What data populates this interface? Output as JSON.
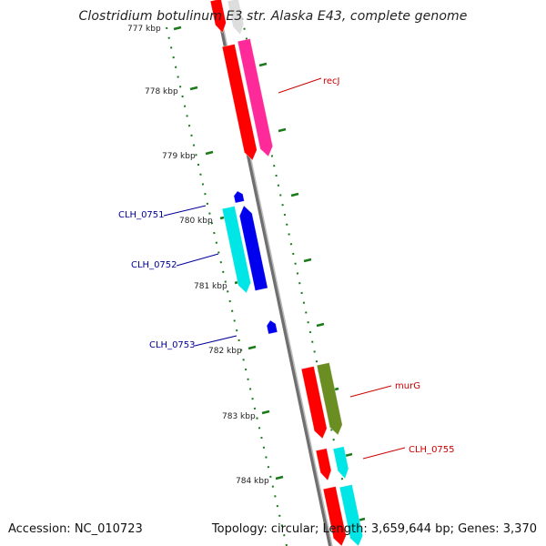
{
  "title": "Clostridium botulinum E3 str. Alaska E43, complete genome",
  "footer": {
    "accession": "Accession: NC_010723",
    "summary": "Topology: circular; Length: 3,659,644 bp; Genes: 3,370"
  },
  "scale_labels": [
    "777 kbp",
    "778 kbp",
    "779 kbp",
    "780 kbp",
    "781 kbp",
    "782 kbp",
    "783 kbp",
    "784 kbp"
  ],
  "gene_labels": [
    {
      "name": "recJ",
      "color": "#cc0000"
    },
    {
      "name": "CLH_0751",
      "color": "#000099"
    },
    {
      "name": "CLH_0752",
      "color": "#000099"
    },
    {
      "name": "CLH_0753",
      "color": "#000099"
    },
    {
      "name": "murG",
      "color": "#cc0000"
    },
    {
      "name": "CLH_0755",
      "color": "#cc0000"
    }
  ],
  "colors": {
    "backbone": "#888888",
    "scale_ticks": "#1a7a1a",
    "forward_strand": "#ff0000",
    "reverse_strand": "#0000ee",
    "rna": "#ff2a99",
    "cyan": "#00e5e5",
    "olive": "#6b8e23"
  }
}
